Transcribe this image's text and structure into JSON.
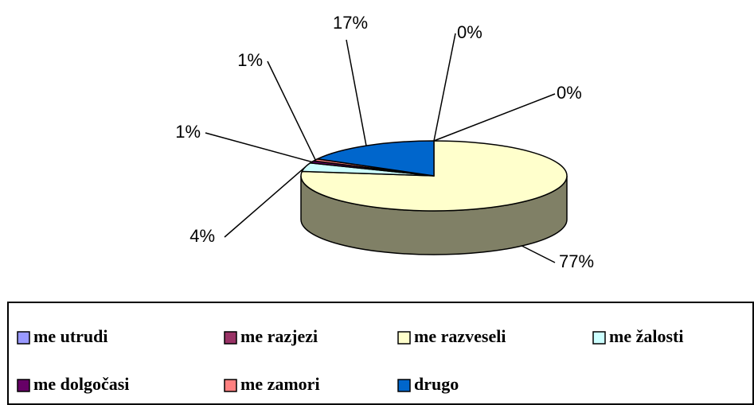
{
  "chart_data": {
    "type": "pie3d",
    "categories": [
      "me utrudi",
      "me razjezi",
      "me razveseli",
      "me žalosti",
      "me dolgočasi",
      "me zamori",
      "drugo"
    ],
    "values": [
      0,
      0,
      77,
      4,
      1,
      1,
      17
    ],
    "value_labels": [
      "0%",
      "0%",
      "77%",
      "4%",
      "1%",
      "1%",
      "17%"
    ],
    "colors": [
      "#9999ff",
      "#993366",
      "#ffffcc",
      "#ccffff",
      "#660066",
      "#ff8080",
      "#0066cc"
    ],
    "legend": "bottom"
  }
}
